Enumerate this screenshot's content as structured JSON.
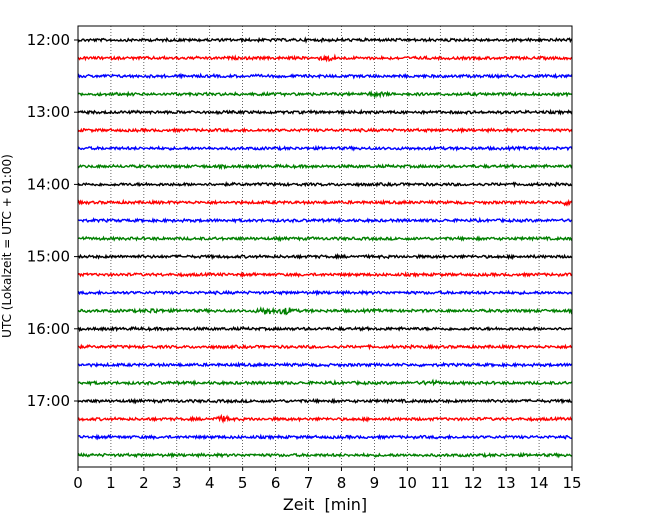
{
  "chart_data": {
    "type": "line",
    "subtype": "helicorder-seismogram",
    "title": "",
    "xlabel": "Zeit  [min]",
    "ylabel": "UTC (Lokalzeit = UTC + 01:00)",
    "xlim": [
      0,
      15
    ],
    "x_ticks": [
      0,
      1,
      2,
      3,
      4,
      5,
      6,
      7,
      8,
      9,
      10,
      11,
      12,
      13,
      14,
      15
    ],
    "y_tick_labels": [
      "12:00",
      "13:00",
      "14:00",
      "15:00",
      "16:00",
      "17:00"
    ],
    "grid": "vertical dotted lines at each minute",
    "trace_interval_minutes": 15,
    "trace_colors": [
      "#000000",
      "#ff0000",
      "#0000ff",
      "#008000"
    ],
    "traces": [
      {
        "start": "12:00",
        "color": "#000000",
        "events": []
      },
      {
        "start": "12:15",
        "color": "#ff0000",
        "events": [
          {
            "x": 7.6,
            "amp": 1.8
          }
        ]
      },
      {
        "start": "12:30",
        "color": "#0000ff",
        "events": []
      },
      {
        "start": "12:45",
        "color": "#008000",
        "events": [
          {
            "x": 9.1,
            "amp": 1.6
          }
        ]
      },
      {
        "start": "13:00",
        "color": "#000000",
        "events": []
      },
      {
        "start": "13:15",
        "color": "#ff0000",
        "events": []
      },
      {
        "start": "13:30",
        "color": "#0000ff",
        "events": []
      },
      {
        "start": "13:45",
        "color": "#008000",
        "events": []
      },
      {
        "start": "14:00",
        "color": "#000000",
        "events": []
      },
      {
        "start": "14:15",
        "color": "#ff0000",
        "events": [
          {
            "x": 14.9,
            "amp": 1.6
          }
        ]
      },
      {
        "start": "14:30",
        "color": "#0000ff",
        "events": []
      },
      {
        "start": "14:45",
        "color": "#008000",
        "events": []
      },
      {
        "start": "15:00",
        "color": "#000000",
        "events": []
      },
      {
        "start": "15:15",
        "color": "#ff0000",
        "events": []
      },
      {
        "start": "15:30",
        "color": "#0000ff",
        "events": []
      },
      {
        "start": "15:45",
        "color": "#008000",
        "events": [
          {
            "x": 2.3,
            "amp": 1.5
          },
          {
            "x": 5.7,
            "amp": 3.2
          },
          {
            "x": 6.3,
            "amp": 3.0
          }
        ]
      },
      {
        "start": "16:00",
        "color": "#000000",
        "events": []
      },
      {
        "start": "16:15",
        "color": "#ff0000",
        "events": []
      },
      {
        "start": "16:30",
        "color": "#0000ff",
        "events": []
      },
      {
        "start": "16:45",
        "color": "#008000",
        "events": [
          {
            "x": 10.7,
            "amp": 1.6
          }
        ]
      },
      {
        "start": "17:00",
        "color": "#000000",
        "events": []
      },
      {
        "start": "17:15",
        "color": "#ff0000",
        "events": [
          {
            "x": 4.4,
            "amp": 2.0
          }
        ]
      },
      {
        "start": "17:30",
        "color": "#0000ff",
        "events": []
      },
      {
        "start": "17:45",
        "color": "#008000",
        "events": []
      }
    ]
  }
}
